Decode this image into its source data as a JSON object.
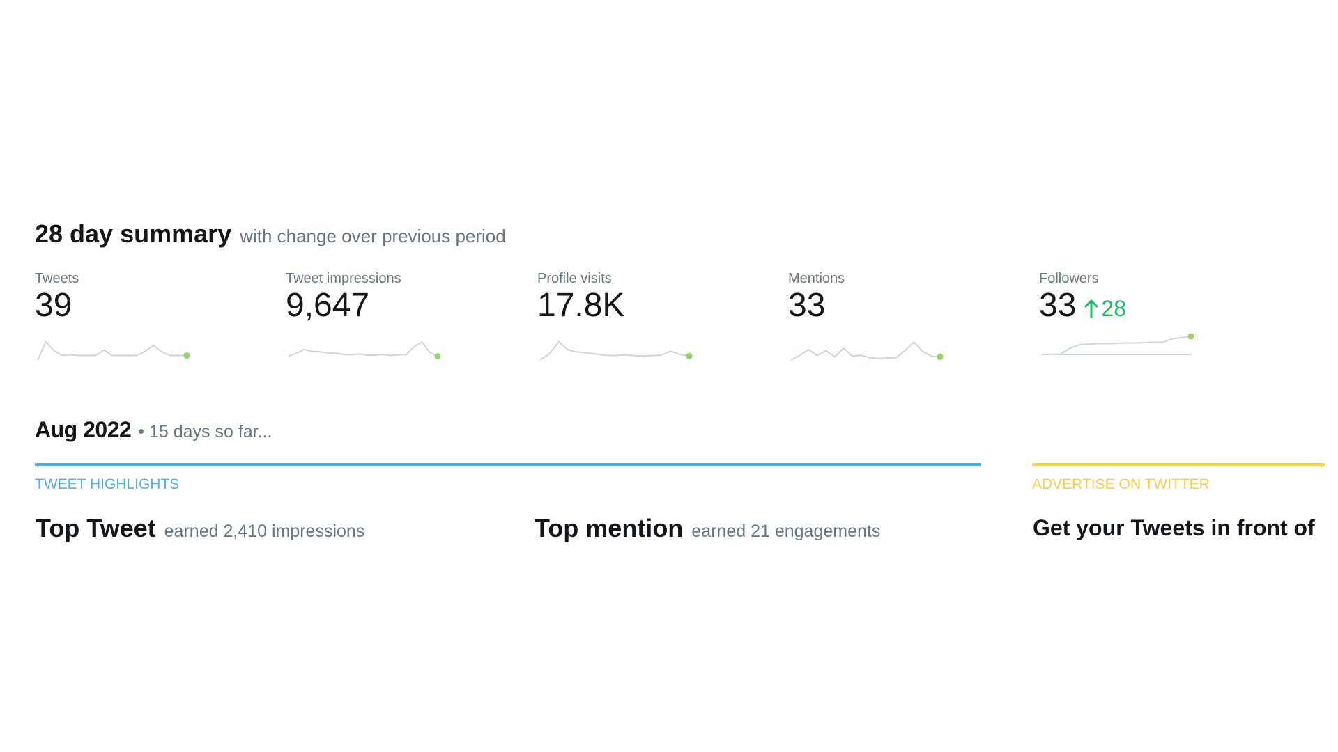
{
  "summary": {
    "title": "28 day summary",
    "subtitle": "with change over previous period"
  },
  "stats": [
    {
      "label": "Tweets",
      "value": "39",
      "change": "",
      "trend": [
        0,
        4,
        2,
        1,
        1.2,
        1,
        1,
        1,
        2.2,
        1,
        1,
        1,
        1,
        2,
        3.2,
        1.8,
        1,
        1,
        1
      ]
    },
    {
      "label": "Tweet impressions",
      "value": "9,647",
      "change": "",
      "trend": [
        1,
        1.8,
        2.8,
        2.3,
        2.2,
        1.9,
        1.8,
        1.5,
        1.4,
        1.6,
        1.3,
        1.3,
        1.5,
        1.2,
        1.4,
        1.4,
        3.5,
        4.8,
        2,
        1
      ]
    },
    {
      "label": "Profile visits",
      "value": "17.8K",
      "change": "",
      "trend": [
        0,
        1.5,
        4.5,
        2.5,
        2,
        1.8,
        1.5,
        1.2,
        1.1,
        1.3,
        1.1,
        1,
        1.1,
        1.2,
        2.2,
        1.4,
        1
      ]
    },
    {
      "label": "Mentions",
      "value": "33",
      "change": "",
      "trend": [
        0,
        1.2,
        2.6,
        1.2,
        2.4,
        0.8,
        3,
        1,
        1.2,
        0.6,
        0.4,
        0.5,
        0.6,
        2.4,
        4.6,
        2.2,
        1,
        0.8
      ]
    },
    {
      "label": "Followers",
      "value": "33",
      "change": "28",
      "trend": [
        0,
        0.05,
        0.05,
        1,
        1.6,
        1.7,
        1.8,
        1.8,
        1.85,
        1.9,
        1.9,
        1.95,
        2,
        2,
        2.6,
        2.8,
        3
      ]
    }
  ],
  "period": {
    "title": "Aug 2022",
    "subtitle": "• 15 days so far..."
  },
  "highlights": {
    "section_label": "TWEET HIGHLIGHTS",
    "top_tweet_title": "Top Tweet",
    "top_tweet_sub": "earned 2,410 impressions",
    "top_mention_title": "Top mention",
    "top_mention_sub": "earned 21 engagements"
  },
  "advertise": {
    "section_label": "ADVERTISE ON TWITTER",
    "text": "Get your Tweets in front of"
  },
  "colors": {
    "sparkline": "#ccd6dd",
    "sparkline_end": "#94d26a",
    "positive_change": "#17bf63",
    "accent_blue": "#55acee",
    "accent_yellow": "#ffcc4d"
  },
  "icons": {
    "change_indicator": "arrow-up-icon"
  }
}
